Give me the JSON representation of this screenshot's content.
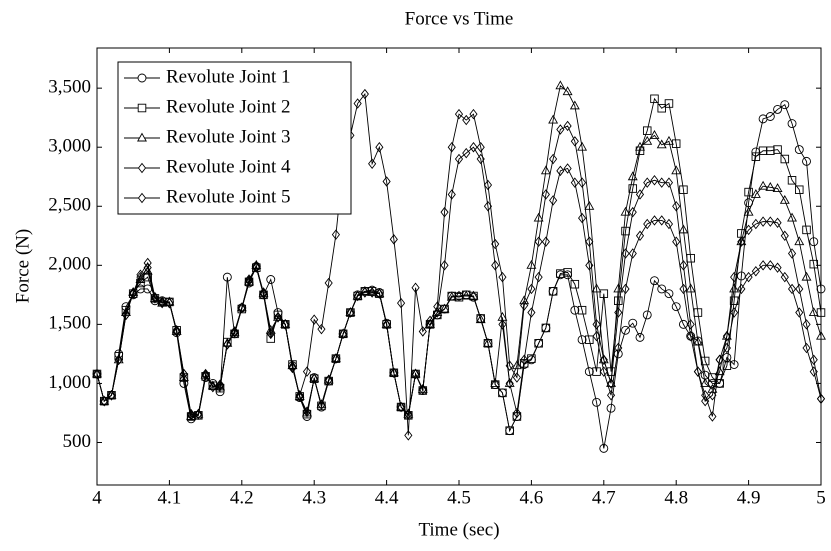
{
  "chart_data": {
    "type": "line",
    "title": "Force vs Time",
    "x_label": "Time (sec)",
    "y_label": "Force (N)",
    "x": [
      4,
      4.01,
      4.02,
      4.03,
      4.04,
      4.05,
      4.06,
      4.07,
      4.08,
      4.09,
      4.1,
      4.11,
      4.12,
      4.13,
      4.14,
      4.15,
      4.16,
      4.17,
      4.18,
      4.19,
      4.2,
      4.21,
      4.22,
      4.23,
      4.24,
      4.25,
      4.26,
      4.27,
      4.28,
      4.29,
      4.3,
      4.31,
      4.32,
      4.33,
      4.34,
      4.35,
      4.36,
      4.37,
      4.38,
      4.39,
      4.4,
      4.41,
      4.42,
      4.43,
      4.44,
      4.45,
      4.46,
      4.47,
      4.48,
      4.49,
      4.5,
      4.51,
      4.52,
      4.53,
      4.54,
      4.55,
      4.56,
      4.57,
      4.58,
      4.59,
      4.6,
      4.61,
      4.62,
      4.63,
      4.64,
      4.65,
      4.66,
      4.67,
      4.68,
      4.69,
      4.7,
      4.71,
      4.72,
      4.73,
      4.74,
      4.75,
      4.76,
      4.77,
      4.78,
      4.79,
      4.8,
      4.81,
      4.82,
      4.83,
      4.84,
      4.85,
      4.86,
      4.87,
      4.88,
      4.89,
      4.9,
      4.91,
      4.92,
      4.93,
      4.94,
      4.95,
      4.96,
      4.97,
      4.98,
      4.99,
      5
    ],
    "xlim": [
      4,
      5
    ],
    "xticks": [
      4,
      4.1,
      4.2,
      4.3,
      4.4,
      4.5,
      4.6,
      4.7,
      4.8,
      4.9,
      5
    ],
    "ylim": [
      140,
      3840
    ],
    "yticks": [
      500,
      {
        "value": 1000,
        "label": "1,000"
      },
      {
        "value": 1500,
        "label": "1,500"
      },
      {
        "value": 2000,
        "label": "2,000"
      },
      {
        "value": 2500,
        "label": "2,500"
      },
      {
        "value": 3000,
        "label": "3,000"
      },
      {
        "value": 3500,
        "label": "3,500"
      }
    ],
    "grid": false,
    "legend": "upper left",
    "series": [
      {
        "name": "Revolute Joint 1",
        "color": "#000000",
        "marker": "circle",
        "values": [
          1080,
          850,
          900,
          1250,
          1650,
          1750,
          1800,
          1800,
          1700,
          1700,
          1690,
          1430,
          1000,
          700,
          730,
          1050,
          1000,
          930,
          1900,
          1420,
          1640,
          1850,
          1990,
          1750,
          1880,
          1600,
          1500,
          1150,
          880,
          720,
          1050,
          800,
          1020,
          1210,
          1420,
          1600,
          1750,
          1780,
          1790,
          1770,
          1510,
          1090,
          800,
          730,
          1080,
          940,
          1500,
          1580,
          1630,
          1740,
          1740,
          1750,
          1730,
          1550,
          1340,
          990,
          920,
          600,
          720,
          1160,
          1200,
          1340,
          1470,
          1780,
          1920,
          1920,
          1620,
          1370,
          1100,
          840,
          450,
          790,
          1250,
          1450,
          1510,
          1390,
          1580,
          1870,
          1800,
          1760,
          1650,
          1500,
          1400,
          1360,
          1070,
          1000,
          1000,
          1220,
          1160,
          1910,
          2530,
          2960,
          3240,
          3260,
          3320,
          3360,
          3200,
          2980,
          2880,
          2200,
          1800
        ]
      },
      {
        "name": "Revolute Joint 2",
        "color": "#000000",
        "marker": "square",
        "values": [
          1080,
          850,
          900,
          1230,
          1620,
          1760,
          1850,
          1900,
          1720,
          1690,
          1690,
          1450,
          1050,
          720,
          730,
          1060,
          980,
          960,
          1350,
          1420,
          1630,
          1860,
          1980,
          1750,
          1380,
          1580,
          1500,
          1160,
          890,
          740,
          1040,
          810,
          1020,
          1210,
          1420,
          1600,
          1740,
          1780,
          1780,
          1760,
          1500,
          1090,
          800,
          730,
          1080,
          940,
          1500,
          1580,
          1630,
          1740,
          1730,
          1750,
          1740,
          1550,
          1340,
          990,
          920,
          600,
          720,
          1170,
          1210,
          1340,
          1470,
          1780,
          1930,
          1940,
          1840,
          1620,
          1370,
          1100,
          1760,
          1100,
          1700,
          2290,
          2650,
          2970,
          3140,
          3410,
          3330,
          3370,
          3030,
          2640,
          2060,
          1600,
          1190,
          1050,
          1000,
          1150,
          1700,
          2270,
          2620,
          2920,
          2970,
          2970,
          2980,
          2900,
          2720,
          2640,
          2300,
          2010,
          1600
        ]
      },
      {
        "name": "Revolute Joint 3",
        "color": "#000000",
        "marker": "triangle",
        "values": [
          1080,
          850,
          900,
          1200,
          1600,
          1770,
          1880,
          1950,
          1720,
          1680,
          1690,
          1440,
          1050,
          720,
          740,
          1070,
          980,
          970,
          1340,
          1430,
          1640,
          1860,
          2000,
          1760,
          1450,
          1560,
          1500,
          1150,
          890,
          750,
          1040,
          820,
          1030,
          1210,
          1420,
          1600,
          1740,
          1780,
          1770,
          1760,
          1500,
          1090,
          800,
          740,
          1080,
          950,
          1500,
          1600,
          1630,
          1730,
          1740,
          1740,
          1740,
          1540,
          1340,
          1000,
          1560,
          1000,
          1150,
          1700,
          2000,
          2400,
          2800,
          3230,
          3520,
          3470,
          3350,
          3000,
          2500,
          1800,
          1200,
          1000,
          1800,
          2450,
          2750,
          3000,
          3050,
          3100,
          3020,
          3050,
          2800,
          2300,
          1800,
          1350,
          1000,
          950,
          1100,
          1400,
          1800,
          2200,
          2450,
          2600,
          2670,
          2660,
          2650,
          2550,
          2400,
          2200,
          1900,
          1600,
          1400
        ]
      },
      {
        "name": "Revolute Joint 4",
        "color": "#000000",
        "marker": "diamond",
        "values": [
          1080,
          850,
          900,
          1200,
          1580,
          1760,
          1900,
          1980,
          1720,
          1680,
          1680,
          1440,
          1080,
          730,
          740,
          1070,
          970,
          980,
          1330,
          1430,
          1640,
          1870,
          1980,
          1760,
          1420,
          1560,
          1500,
          1140,
          890,
          760,
          1040,
          820,
          1030,
          1210,
          1420,
          1600,
          1740,
          1770,
          1770,
          1760,
          1500,
          1090,
          800,
          740,
          1080,
          950,
          1500,
          1600,
          2000,
          2600,
          2900,
          2950,
          3000,
          2900,
          2500,
          2000,
          1500,
          1000,
          750,
          1200,
          1600,
          1900,
          2200,
          2550,
          2800,
          2820,
          2700,
          2400,
          2000,
          1400,
          1100,
          900,
          1300,
          1800,
          2100,
          2250,
          2350,
          2380,
          2380,
          2350,
          2200,
          1800,
          1400,
          1100,
          850,
          900,
          1200,
          1300,
          1600,
          1800,
          1900,
          1950,
          2000,
          2000,
          1980,
          1900,
          1800,
          1600,
          1300,
          1100,
          870
        ]
      },
      {
        "name": "Revolute Joint 5",
        "color": "#000000",
        "marker": "diamond",
        "values": [
          1080,
          850,
          900,
          1200,
          1580,
          1770,
          1920,
          2020,
          1730,
          1690,
          1680,
          1450,
          1080,
          740,
          740,
          1080,
          970,
          990,
          1330,
          1440,
          1640,
          1880,
          1990,
          1770,
          1420,
          1560,
          1500,
          1130,
          900,
          1100,
          1540,
          1460,
          1850,
          2260,
          2850,
          3100,
          3370,
          3450,
          2860,
          3000,
          2710,
          2220,
          1680,
          560,
          1810,
          1440,
          1530,
          1650,
          2450,
          3000,
          3280,
          3230,
          3280,
          3000,
          2680,
          2180,
          1900,
          1150,
          1050,
          1660,
          1800,
          2200,
          2600,
          2900,
          3150,
          3180,
          3050,
          2700,
          2200,
          1500,
          1200,
          1000,
          1600,
          2100,
          2450,
          2600,
          2700,
          2720,
          2700,
          2700,
          2500,
          2000,
          1500,
          1100,
          900,
          720,
          1200,
          1400,
          1900,
          2200,
          2300,
          2350,
          2370,
          2370,
          2360,
          2250,
          2100,
          1800,
          1500,
          1200,
          870
        ]
      }
    ]
  }
}
